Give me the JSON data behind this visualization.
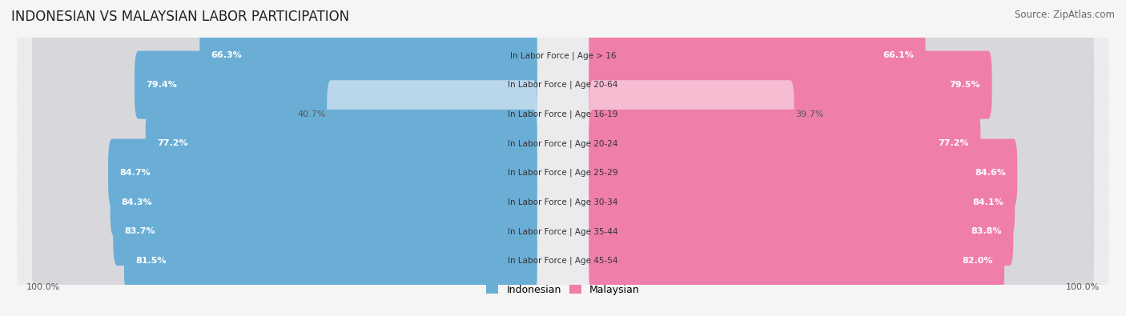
{
  "title": "INDONESIAN VS MALAYSIAN LABOR PARTICIPATION",
  "source": "Source: ZipAtlas.com",
  "categories": [
    "In Labor Force | Age > 16",
    "In Labor Force | Age 20-64",
    "In Labor Force | Age 16-19",
    "In Labor Force | Age 20-24",
    "In Labor Force | Age 25-29",
    "In Labor Force | Age 30-34",
    "In Labor Force | Age 35-44",
    "In Labor Force | Age 45-54"
  ],
  "indonesian": [
    66.3,
    79.4,
    40.7,
    77.2,
    84.7,
    84.3,
    83.7,
    81.5
  ],
  "malaysian": [
    66.1,
    79.5,
    39.7,
    77.2,
    84.6,
    84.1,
    83.8,
    82.0
  ],
  "indonesian_color": "#6aaed6",
  "indonesian_color_light": "#bad6ea",
  "malaysian_color": "#f07eaa",
  "malaysian_color_light": "#f5bcd2",
  "row_bg_color": "#e8e8ec",
  "bar_bg_color": "#dcdce0",
  "max_value": 100.0,
  "legend_label_indonesian": "Indonesian",
  "legend_label_malaysian": "Malaysian",
  "title_fontsize": 12,
  "source_fontsize": 8.5,
  "bar_label_fontsize": 8,
  "cat_label_fontsize": 7.5,
  "axis_label_fontsize": 8
}
